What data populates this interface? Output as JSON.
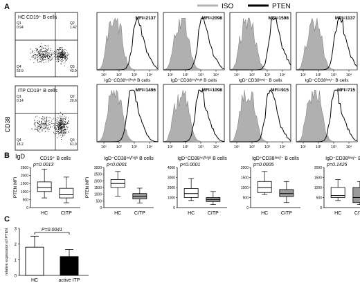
{
  "panel_labels": [
    "A",
    "B",
    "C"
  ],
  "legend": {
    "iso_label": "ISO",
    "pten_label": "PTEN",
    "iso_color": "#b0b0b0",
    "pten_color": "#000000"
  },
  "flow": {
    "plots": [
      {
        "title": "HC CD19⁺ B cells",
        "quadrants": {
          "Q1": "0.94",
          "Q2": "1.42",
          "Q4": "53.9",
          "Q3": "43.9"
        }
      },
      {
        "title": "ITP CD19⁺ B cells",
        "quadrants": {
          "Q1": "0.14",
          "Q2": "20.6",
          "Q4": "18.2",
          "Q3": "61.0"
        }
      }
    ],
    "y_axis_label": "CD38",
    "x_axis_label": "IgD"
  },
  "histograms": {
    "tick_labels": [
      "10¹",
      "10²",
      "10³",
      "10⁴"
    ],
    "rows": [
      [
        {
          "mfi": "MFI=2137",
          "population": "IgD⁻CD38ⁱⁿᵗ/ʰⁱᵍʰ B cells",
          "peak": 0.66
        },
        {
          "mfi": "MFI=2098",
          "population": "IgD⁺CD38ⁱⁿᵗ/ʰⁱᵍʰ B cells",
          "peak": 0.64
        },
        {
          "mfi": "MFI=1598",
          "population": "IgD⁺CD38ˡᵒʷ/⁻ B cells",
          "peak": 0.72
        },
        {
          "mfi": "MFI=1137",
          "population": "IgD⁻CD38ˡᵒʷ/⁻ B cells",
          "peak": 0.7
        }
      ],
      [
        {
          "mfi": "MFI=1496",
          "peak": 0.57
        },
        {
          "mfi": "MFI=1098",
          "peak": 0.6
        },
        {
          "mfi": "MFI=915",
          "peak": 0.66
        },
        {
          "mfi": "MFI=715",
          "peak": 0.64
        }
      ]
    ]
  },
  "chart_data": [
    {
      "type": "box",
      "title": "CD19⁺ B cells",
      "p_value": "p=0.0013",
      "ylabel": "PTEN MFI",
      "categories": [
        "HC",
        "CITP"
      ],
      "yticks": [
        "0",
        "500",
        "1000",
        "1500",
        "2000",
        "2500"
      ],
      "ylim": [
        0,
        2500
      ],
      "boxes": [
        {
          "min": 600,
          "q1": 1000,
          "median": 1250,
          "q3": 1600,
          "max": 2400,
          "fill": "#ffffff"
        },
        {
          "min": 300,
          "q1": 600,
          "median": 800,
          "q3": 1200,
          "max": 1900,
          "fill": "#ffffff"
        }
      ]
    },
    {
      "type": "box",
      "title": "IgD⁻CD38ⁱⁿᵗ/ʰⁱᵍʰ B cells",
      "p_value": "p<0.0001",
      "ylabel": "PTEN MFI",
      "categories": [
        "HC",
        "CITP"
      ],
      "yticks": [
        "0",
        "500",
        "1000",
        "1500",
        "2000",
        "2500",
        "3000"
      ],
      "ylim": [
        0,
        3000
      ],
      "boxes": [
        {
          "min": 850,
          "q1": 1500,
          "median": 1800,
          "q3": 2100,
          "max": 2700,
          "fill": "#ffffff"
        },
        {
          "min": 350,
          "q1": 650,
          "median": 850,
          "q3": 1050,
          "max": 1450,
          "fill": "#999999"
        }
      ]
    },
    {
      "type": "box",
      "title": "IgD⁺CD38ⁱⁿᵗ/ʰⁱᵍʰ B cells",
      "p_value": "p<0.0001",
      "ylabel": "",
      "categories": [
        "HC",
        "CITP"
      ],
      "yticks": [
        "0",
        "1000",
        "2000",
        "3000",
        "4000"
      ],
      "ylim": [
        0,
        4000
      ],
      "boxes": [
        {
          "min": 700,
          "q1": 1000,
          "median": 1400,
          "q3": 1900,
          "max": 2900,
          "fill": "#ffffff"
        },
        {
          "min": 300,
          "q1": 600,
          "median": 800,
          "q3": 1000,
          "max": 1600,
          "fill": "#999999"
        }
      ]
    },
    {
      "type": "box",
      "title": "IgD⁺CD38ˡᵒʷ/⁻ B cells",
      "p_value": "p=0.0005",
      "ylabel": "",
      "categories": [
        "HC",
        "CITP"
      ],
      "yticks": [
        "0",
        "500",
        "1000",
        "1500",
        "2000"
      ],
      "ylim": [
        0,
        2000
      ],
      "boxes": [
        {
          "min": 650,
          "q1": 750,
          "median": 1000,
          "q3": 1300,
          "max": 1800,
          "fill": "#ffffff"
        },
        {
          "min": 250,
          "q1": 550,
          "median": 700,
          "q3": 900,
          "max": 1300,
          "fill": "#999999"
        }
      ]
    },
    {
      "type": "box",
      "title": "IgD⁻CD38ˡᵒʷ/⁻ B cells",
      "p_value": "p=0.1425",
      "ylabel": "",
      "categories": [
        "HC",
        "CITP"
      ],
      "yticks": [
        "0",
        "500",
        "1000",
        "1500",
        "2000"
      ],
      "ylim": [
        0,
        2000
      ],
      "boxes": [
        {
          "min": 350,
          "q1": 500,
          "median": 600,
          "q3": 1000,
          "max": 1400,
          "fill": "#ffffff"
        },
        {
          "min": 150,
          "q1": 250,
          "median": 500,
          "q3": 1000,
          "max": 1300,
          "fill": "#999999"
        }
      ]
    },
    {
      "type": "bar",
      "categories": [
        "HC",
        "active ITP"
      ],
      "values": [
        1.8,
        1.2
      ],
      "errors": [
        0.7,
        0.45
      ],
      "fills": [
        "#ffffff",
        "#000000"
      ],
      "ylabel": "relative expression of PTEN",
      "yticks": [
        "0",
        "1",
        "2",
        "3"
      ],
      "ylim": [
        0,
        3
      ],
      "p_value": "P=0.0041"
    }
  ]
}
